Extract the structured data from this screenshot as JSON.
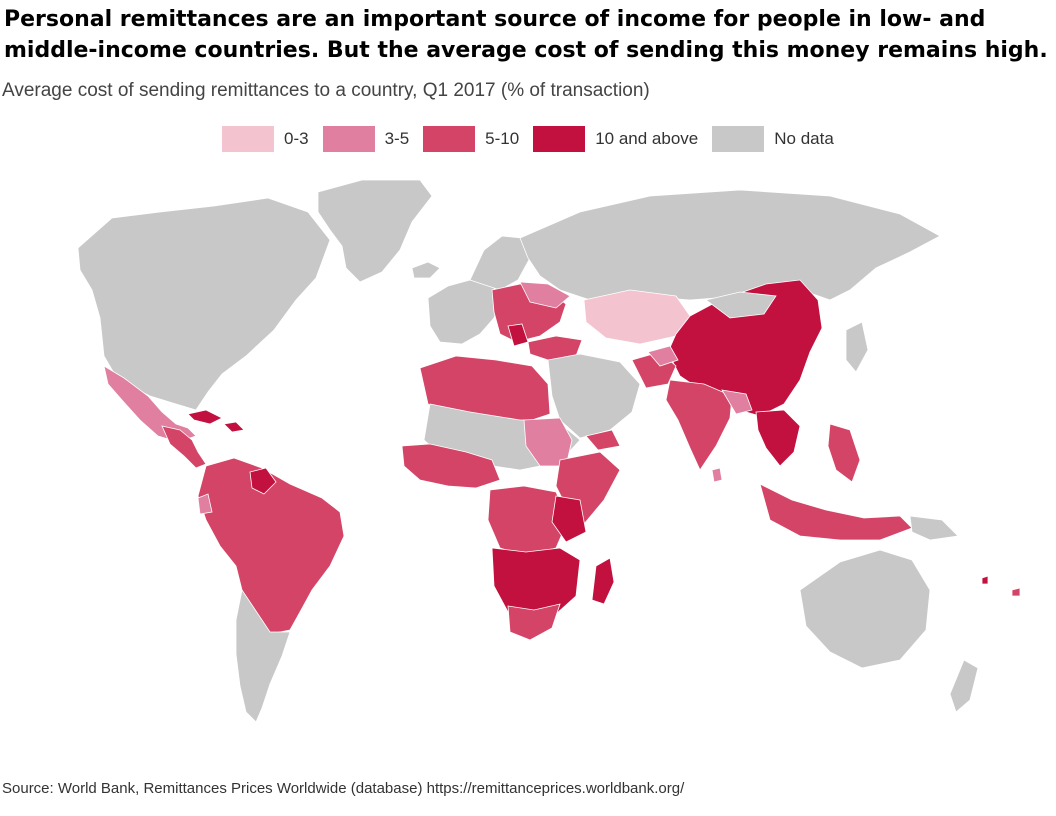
{
  "title": "Personal remittances are an important source of income for people in low- and middle-income countries. But the average cost of sending this money remains high.",
  "subtitle": "Average cost of sending remittances to a country, Q1 2017 (% of transaction)",
  "legend": [
    {
      "label": "0-3",
      "color": "#f4c3d0"
    },
    {
      "label": "3-5",
      "color": "#e07f9f"
    },
    {
      "label": "5-10",
      "color": "#d44466"
    },
    {
      "label": "10 and above",
      "color": "#c2103f"
    },
    {
      "label": "No data",
      "color": "#c8c8c8"
    }
  ],
  "source": "Source: World Bank, Remittances Prices Worldwide (database) https://remittanceprices.worldbank.org/"
}
